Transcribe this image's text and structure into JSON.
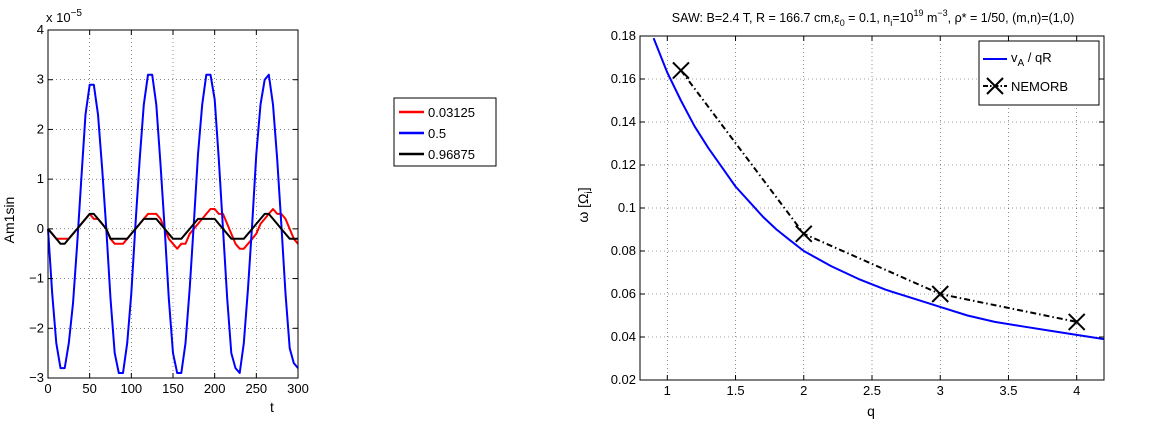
{
  "chart_data": [
    {
      "type": "line",
      "title": "",
      "xlabel": "t",
      "ylabel": "Am1sin",
      "y_exponent_label": "x 10",
      "y_exponent": "−5",
      "xlim": [
        0,
        300
      ],
      "ylim": [
        -3,
        4
      ],
      "x_ticks": [
        0,
        50,
        100,
        150,
        200,
        250,
        300
      ],
      "y_ticks": [
        -3,
        -2,
        -1,
        0,
        1,
        2,
        3,
        4
      ],
      "x_tick_labels": [
        "0",
        "50",
        "100",
        "150",
        "200",
        "250",
        "300"
      ],
      "y_tick_labels": [
        "−3",
        "−2",
        "−1",
        "0",
        "1",
        "2",
        "3",
        "4"
      ],
      "grid": true,
      "legend_placement": "right",
      "series": [
        {
          "name": "0.03125",
          "color": "#ff0000",
          "x": [
            0,
            5,
            10,
            15,
            20,
            25,
            30,
            35,
            40,
            45,
            50,
            55,
            60,
            65,
            70,
            75,
            80,
            85,
            90,
            95,
            100,
            105,
            110,
            115,
            120,
            125,
            130,
            135,
            140,
            145,
            150,
            155,
            160,
            165,
            170,
            175,
            180,
            185,
            190,
            195,
            200,
            205,
            210,
            215,
            220,
            225,
            230,
            235,
            240,
            245,
            250,
            255,
            260,
            265,
            270,
            275,
            280,
            285,
            290,
            295,
            300
          ],
          "y": [
            0,
            -0.1,
            -0.2,
            -0.2,
            -0.2,
            -0.2,
            -0.1,
            0,
            0.1,
            0.2,
            0.3,
            0.2,
            0.2,
            0.1,
            0,
            -0.2,
            -0.3,
            -0.3,
            -0.3,
            -0.2,
            -0.1,
            0,
            0.1,
            0.2,
            0.3,
            0.3,
            0.3,
            0.2,
            0,
            -0.2,
            -0.3,
            -0.4,
            -0.3,
            -0.3,
            -0.1,
            0,
            0.1,
            0.2,
            0.3,
            0.4,
            0.4,
            0.3,
            0.3,
            0.1,
            -0.1,
            -0.3,
            -0.4,
            -0.4,
            -0.3,
            -0.2,
            -0.1,
            0.1,
            0.2,
            0.3,
            0.4,
            0.3,
            0.3,
            0.2,
            0,
            -0.2,
            -0.3
          ]
        },
        {
          "name": "0.5",
          "color": "#0000ff",
          "x": [
            0,
            5,
            10,
            15,
            20,
            25,
            30,
            35,
            40,
            45,
            50,
            55,
            60,
            65,
            70,
            75,
            80,
            85,
            90,
            95,
            100,
            105,
            110,
            115,
            120,
            125,
            130,
            135,
            140,
            145,
            150,
            155,
            160,
            165,
            170,
            175,
            180,
            185,
            190,
            195,
            200,
            205,
            210,
            215,
            220,
            225,
            230,
            235,
            240,
            245,
            250,
            255,
            260,
            265,
            270,
            275,
            280,
            285,
            290,
            295,
            300
          ],
          "y": [
            0,
            -1.3,
            -2.3,
            -2.8,
            -2.8,
            -2.3,
            -1.5,
            -0.3,
            1.0,
            2.3,
            2.9,
            2.9,
            2.3,
            1.2,
            0,
            -1.4,
            -2.5,
            -2.9,
            -2.9,
            -2.3,
            -1.3,
            0.1,
            1.4,
            2.5,
            3.1,
            3.1,
            2.5,
            1.3,
            0,
            -1.4,
            -2.5,
            -2.9,
            -2.9,
            -2.3,
            -1.2,
            0.1,
            1.5,
            2.5,
            3.1,
            3.1,
            2.6,
            1.4,
            0,
            -1.4,
            -2.5,
            -2.8,
            -2.9,
            -2.3,
            -1.2,
            0.1,
            1.5,
            2.5,
            3.0,
            3.1,
            2.5,
            1.4,
            0.1,
            -1.3,
            -2.4,
            -2.7,
            -2.8
          ]
        },
        {
          "name": "0.96875",
          "color": "#000000",
          "x": [
            0,
            5,
            10,
            15,
            20,
            25,
            30,
            35,
            40,
            45,
            50,
            55,
            60,
            65,
            70,
            75,
            80,
            85,
            90,
            95,
            100,
            105,
            110,
            115,
            120,
            125,
            130,
            135,
            140,
            145,
            150,
            155,
            160,
            165,
            170,
            175,
            180,
            185,
            190,
            195,
            200,
            205,
            210,
            215,
            220,
            225,
            230,
            235,
            240,
            245,
            250,
            255,
            260,
            265,
            270,
            275,
            280,
            285,
            290,
            295,
            300
          ],
          "y": [
            0,
            -0.1,
            -0.2,
            -0.3,
            -0.3,
            -0.2,
            -0.1,
            0,
            0.1,
            0.2,
            0.3,
            0.3,
            0.2,
            0.1,
            0,
            -0.2,
            -0.2,
            -0.2,
            -0.2,
            -0.2,
            -0.1,
            0,
            0.1,
            0.2,
            0.2,
            0.2,
            0.2,
            0.1,
            0,
            -0.1,
            -0.2,
            -0.2,
            -0.2,
            -0.1,
            0,
            0.1,
            0.2,
            0.2,
            0.2,
            0.2,
            0.2,
            0.1,
            0,
            -0.1,
            -0.2,
            -0.2,
            -0.2,
            -0.2,
            -0.1,
            0,
            0.1,
            0.2,
            0.3,
            0.3,
            0.2,
            0.1,
            0,
            -0.1,
            -0.2,
            -0.2,
            -0.2
          ]
        }
      ]
    },
    {
      "type": "line",
      "title_parts": [
        "SAW: B=2.4 T, R = 166.7 cm,ε",
        "0",
        " = 0.1, n",
        "i",
        "=10",
        "19",
        " m",
        "−3",
        ", ρ* = 1/50, (m,n)=(1,0)"
      ],
      "xlabel": "q",
      "ylabel_main": "ω [Ω",
      "ylabel_sub": "i",
      "ylabel_end": "]",
      "xlim": [
        0.8,
        4.2
      ],
      "ylim": [
        0.02,
        0.18
      ],
      "x_ticks": [
        1,
        1.5,
        2,
        2.5,
        3,
        3.5,
        4
      ],
      "y_ticks": [
        0.02,
        0.04,
        0.06,
        0.08,
        0.1,
        0.12,
        0.14,
        0.16,
        0.18
      ],
      "x_tick_labels": [
        "1",
        "1.5",
        "2",
        "2.5",
        "3",
        "3.5",
        "4"
      ],
      "y_tick_labels": [
        "0.02",
        "0.04",
        "0.06",
        "0.08",
        "0.1",
        "0.12",
        "0.14",
        "0.16",
        "0.18"
      ],
      "grid": true,
      "legend_placement": "top-right",
      "series": [
        {
          "name_main": "v",
          "name_sub": "A",
          "name_end": " / qR",
          "color": "#0000ff",
          "style": "solid",
          "x": [
            0.9,
            1.0,
            1.1,
            1.2,
            1.3,
            1.4,
            1.5,
            1.6,
            1.7,
            1.8,
            1.9,
            2.0,
            2.2,
            2.4,
            2.6,
            2.8,
            3.0,
            3.2,
            3.4,
            3.6,
            3.8,
            4.0,
            4.2
          ],
          "y": [
            0.179,
            0.163,
            0.15,
            0.138,
            0.128,
            0.119,
            0.11,
            0.103,
            0.096,
            0.09,
            0.085,
            0.08,
            0.073,
            0.067,
            0.062,
            0.058,
            0.054,
            0.05,
            0.047,
            0.045,
            0.043,
            0.041,
            0.039
          ]
        },
        {
          "name": "NEMORB",
          "color": "#000000",
          "style": "dashdot",
          "marker": "x",
          "x": [
            1.1,
            2.0,
            3.0,
            4.0
          ],
          "y": [
            0.164,
            0.088,
            0.06,
            0.047
          ]
        }
      ]
    }
  ]
}
